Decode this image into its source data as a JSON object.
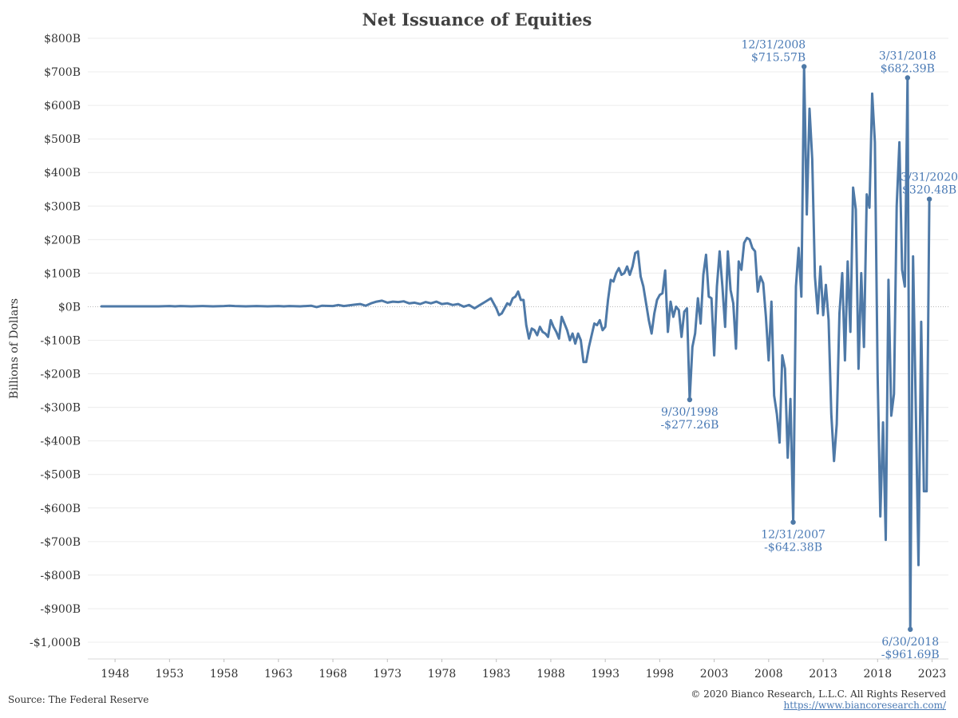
{
  "chart_data": {
    "type": "line",
    "title": "Net Issuance of Equities",
    "ylabel": "Billions of Dollars",
    "xlabel": "",
    "ylim": [
      -1030,
      820
    ],
    "xlim": [
      1945.5,
      2024.5
    ],
    "y_ticks": [
      800,
      700,
      600,
      500,
      400,
      300,
      200,
      100,
      0,
      -100,
      -200,
      -300,
      -400,
      -500,
      -600,
      -700,
      -800,
      -900,
      -1000
    ],
    "y_tick_labels": [
      "$800B",
      "$700B",
      "$600B",
      "$500B",
      "$400B",
      "$300B",
      "$200B",
      "$100B",
      "$0B",
      "-$100B",
      "-$200B",
      "-$300B",
      "-$400B",
      "-$500B",
      "-$600B",
      "-$700B",
      "-$800B",
      "-$900B",
      "-$1,000B"
    ],
    "x_ticks": [
      1948,
      1953,
      1958,
      1963,
      1968,
      1973,
      1978,
      1983,
      1988,
      1993,
      1998,
      2003,
      2008,
      2013,
      2018,
      2023
    ],
    "x_tick_labels": [
      "1948",
      "1953",
      "1958",
      "1963",
      "1968",
      "1973",
      "1978",
      "1983",
      "1988",
      "1993",
      "1998",
      "2003",
      "2008",
      "2013",
      "2018",
      "2023"
    ],
    "grid": true,
    "zero_line": "dotted",
    "series": [
      {
        "color": "#4e79a7",
        "points": [
          [
            1946.75,
            1
          ],
          [
            1948.0,
            1
          ],
          [
            1949.0,
            1
          ],
          [
            1950.0,
            1
          ],
          [
            1951.0,
            1
          ],
          [
            1952.0,
            1
          ],
          [
            1953.0,
            2
          ],
          [
            1953.5,
            1
          ],
          [
            1954.0,
            2
          ],
          [
            1955.0,
            1
          ],
          [
            1956.0,
            2
          ],
          [
            1957.0,
            1
          ],
          [
            1958.0,
            2
          ],
          [
            1958.5,
            3
          ],
          [
            1959.0,
            2
          ],
          [
            1960.0,
            1
          ],
          [
            1961.0,
            2
          ],
          [
            1962.0,
            1
          ],
          [
            1963.0,
            2
          ],
          [
            1963.5,
            1
          ],
          [
            1964.0,
            2
          ],
          [
            1965.0,
            1
          ],
          [
            1966.0,
            3
          ],
          [
            1966.5,
            -1
          ],
          [
            1967.0,
            3
          ],
          [
            1968.0,
            2
          ],
          [
            1968.5,
            5
          ],
          [
            1969.0,
            2
          ],
          [
            1970.0,
            6
          ],
          [
            1970.5,
            8
          ],
          [
            1971.0,
            3
          ],
          [
            1971.5,
            10
          ],
          [
            1972.0,
            15
          ],
          [
            1972.5,
            18
          ],
          [
            1973.0,
            12
          ],
          [
            1973.5,
            15
          ],
          [
            1974.0,
            14
          ],
          [
            1974.5,
            16
          ],
          [
            1975.0,
            10
          ],
          [
            1975.5,
            12
          ],
          [
            1976.0,
            8
          ],
          [
            1976.5,
            14
          ],
          [
            1977.0,
            10
          ],
          [
            1977.5,
            15
          ],
          [
            1978.0,
            8
          ],
          [
            1978.5,
            10
          ],
          [
            1979.0,
            5
          ],
          [
            1979.5,
            8
          ],
          [
            1980.0,
            0
          ],
          [
            1980.5,
            5
          ],
          [
            1981.0,
            -5
          ],
          [
            1981.5,
            5
          ],
          [
            1982.0,
            15
          ],
          [
            1982.5,
            25
          ],
          [
            1983.0,
            -5
          ],
          [
            1983.25,
            -25
          ],
          [
            1983.5,
            -20
          ],
          [
            1984.0,
            10
          ],
          [
            1984.25,
            5
          ],
          [
            1984.5,
            25
          ],
          [
            1984.75,
            30
          ],
          [
            1985.0,
            45
          ],
          [
            1985.25,
            20
          ],
          [
            1985.5,
            20
          ],
          [
            1985.75,
            -55
          ],
          [
            1986.0,
            -95
          ],
          [
            1986.25,
            -65
          ],
          [
            1986.5,
            -70
          ],
          [
            1986.75,
            -85
          ],
          [
            1987.0,
            -60
          ],
          [
            1987.25,
            -75
          ],
          [
            1987.5,
            -80
          ],
          [
            1987.75,
            -90
          ],
          [
            1988.0,
            -40
          ],
          [
            1988.25,
            -60
          ],
          [
            1988.5,
            -75
          ],
          [
            1988.75,
            -95
          ],
          [
            1989.0,
            -30
          ],
          [
            1989.25,
            -50
          ],
          [
            1989.5,
            -70
          ],
          [
            1989.75,
            -100
          ],
          [
            1990.0,
            -80
          ],
          [
            1990.25,
            -110
          ],
          [
            1990.5,
            -80
          ],
          [
            1990.75,
            -100
          ],
          [
            1991.0,
            -165
          ],
          [
            1991.25,
            -165
          ],
          [
            1991.5,
            -120
          ],
          [
            1991.75,
            -85
          ],
          [
            1992.0,
            -50
          ],
          [
            1992.25,
            -55
          ],
          [
            1992.5,
            -40
          ],
          [
            1992.75,
            -70
          ],
          [
            1993.0,
            -60
          ],
          [
            1993.25,
            20
          ],
          [
            1993.5,
            80
          ],
          [
            1993.75,
            75
          ],
          [
            1994.0,
            100
          ],
          [
            1994.25,
            115
          ],
          [
            1994.5,
            95
          ],
          [
            1994.75,
            100
          ],
          [
            1995.0,
            120
          ],
          [
            1995.25,
            95
          ],
          [
            1995.5,
            120
          ],
          [
            1995.75,
            160
          ],
          [
            1996.0,
            165
          ],
          [
            1996.25,
            90
          ],
          [
            1996.5,
            60
          ],
          [
            1996.75,
            10
          ],
          [
            1997.0,
            -40
          ],
          [
            1997.25,
            -80
          ],
          [
            1997.5,
            -20
          ],
          [
            1997.75,
            20
          ],
          [
            1998.0,
            35
          ],
          [
            1998.25,
            40
          ],
          [
            1998.5,
            108
          ],
          [
            1998.75,
            -75
          ],
          [
            1999.0,
            15
          ],
          [
            1999.25,
            -30
          ],
          [
            1999.5,
            0
          ],
          [
            1999.75,
            -10
          ],
          [
            2000.0,
            -90
          ],
          [
            2000.25,
            -15
          ],
          [
            2000.5,
            -5
          ],
          [
            2000.75,
            -277.26
          ],
          [
            2001.0,
            -120
          ],
          [
            2001.25,
            -80
          ],
          [
            2001.5,
            25
          ],
          [
            2001.75,
            -50
          ],
          [
            2002.0,
            95
          ],
          [
            2002.25,
            155
          ],
          [
            2002.5,
            30
          ],
          [
            2002.75,
            25
          ],
          [
            2003.0,
            -145
          ],
          [
            2003.25,
            60
          ],
          [
            2003.5,
            165
          ],
          [
            2003.75,
            60
          ],
          [
            2004.0,
            -60
          ],
          [
            2004.25,
            165
          ],
          [
            2004.5,
            50
          ],
          [
            2004.75,
            10
          ],
          [
            2005.0,
            -125
          ],
          [
            2005.25,
            135
          ],
          [
            2005.5,
            110
          ],
          [
            2005.75,
            190
          ],
          [
            2006.0,
            205
          ],
          [
            2006.25,
            200
          ],
          [
            2006.5,
            175
          ],
          [
            2006.75,
            165
          ],
          [
            2007.0,
            45
          ],
          [
            2007.25,
            90
          ],
          [
            2007.5,
            70
          ],
          [
            2007.75,
            -30
          ],
          [
            2008.0,
            -160
          ],
          [
            2008.25,
            15
          ],
          [
            2008.5,
            -265
          ],
          [
            2008.75,
            -320
          ],
          [
            2009.0,
            -405
          ],
          [
            2009.25,
            -145
          ],
          [
            2009.5,
            -185
          ],
          [
            2009.75,
            -450
          ],
          [
            2010.0,
            -275
          ],
          [
            2010.25,
            -642.38
          ],
          [
            2010.5,
            60
          ],
          [
            2010.75,
            175
          ],
          [
            2011.0,
            30
          ],
          [
            2011.25,
            715.57
          ],
          [
            2011.5,
            275
          ],
          [
            2011.75,
            590
          ],
          [
            2012.0,
            440
          ],
          [
            2012.25,
            90
          ],
          [
            2012.5,
            -20
          ],
          [
            2012.75,
            120
          ],
          [
            2013.0,
            -25
          ],
          [
            2013.25,
            65
          ],
          [
            2013.5,
            -40
          ],
          [
            2013.75,
            -320
          ],
          [
            2014.0,
            -460
          ],
          [
            2014.25,
            -350
          ],
          [
            2014.5,
            -20
          ],
          [
            2014.75,
            100
          ],
          [
            2015.0,
            -160
          ],
          [
            2015.25,
            135
          ],
          [
            2015.5,
            -75
          ],
          [
            2015.75,
            355
          ],
          [
            2016.0,
            290
          ],
          [
            2016.25,
            -185
          ],
          [
            2016.5,
            100
          ],
          [
            2016.75,
            -120
          ],
          [
            2017.0,
            335
          ],
          [
            2017.25,
            295
          ],
          [
            2017.5,
            635
          ],
          [
            2017.75,
            490
          ],
          [
            2018.0,
            -200
          ],
          [
            2018.25,
            -625
          ],
          [
            2018.5,
            -345
          ],
          [
            2018.75,
            -695
          ],
          [
            2019.0,
            80
          ],
          [
            2019.25,
            -325
          ],
          [
            2019.5,
            -260
          ],
          [
            2019.75,
            300
          ],
          [
            2020.0,
            490
          ],
          [
            2020.25,
            110
          ],
          [
            2020.5,
            60
          ],
          [
            2020.75,
            682.39
          ],
          [
            2021.0,
            -961.69
          ],
          [
            2021.25,
            150
          ],
          [
            2021.5,
            -300
          ],
          [
            2021.75,
            -770
          ],
          [
            2022.0,
            -45
          ],
          [
            2022.25,
            -550
          ],
          [
            2022.5,
            -550
          ],
          [
            2022.75,
            320.48
          ]
        ]
      }
    ],
    "annotations": [
      {
        "date": "12/31/2008",
        "value": "$715.57B",
        "x": 2011.25,
        "y": 715.57,
        "anchor": "end",
        "placement": "above"
      },
      {
        "date": "3/31/2018",
        "value": "$682.39B",
        "x": 2020.75,
        "y": 682.39,
        "anchor": "middle",
        "placement": "above"
      },
      {
        "date": "3/31/2020",
        "value": "$320.48B",
        "x": 2022.75,
        "y": 320.48,
        "anchor": "middle",
        "placement": "above"
      },
      {
        "date": "9/30/1998",
        "value": "-$277.26B",
        "x": 2000.75,
        "y": -277.26,
        "anchor": "middle",
        "placement": "below"
      },
      {
        "date": "12/31/2007",
        "value": "-$642.38B",
        "x": 2010.25,
        "y": -642.38,
        "anchor": "middle",
        "placement": "below"
      },
      {
        "date": "6/30/2018",
        "value": "-$961.69B",
        "x": 2021.0,
        "y": -961.69,
        "anchor": "middle",
        "placement": "below"
      }
    ]
  },
  "footer": {
    "source": "Source: The Federal Reserve",
    "copyright": "© 2020 Bianco Research, L.L.C. All Rights Reserved",
    "website": "https://www.biancoresearch.com/"
  }
}
